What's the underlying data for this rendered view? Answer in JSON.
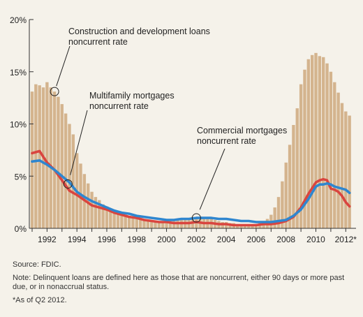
{
  "chart_data": {
    "type": "bar",
    "title": "",
    "xlabel": "",
    "ylabel": "",
    "ylim": [
      0,
      20
    ],
    "y_ticks": [
      "0%",
      "5%",
      "10%",
      "15%",
      "20%"
    ],
    "x_ticks": [
      "1992",
      "1994",
      "1996",
      "1998",
      "2000",
      "2002",
      "2004",
      "2006",
      "2008",
      "2010",
      "2012*"
    ],
    "x_range": [
      1991.0,
      2012.5
    ],
    "grid": false,
    "colors": {
      "bars": "#d4b48e",
      "multifamily": "#d9453f",
      "commercial": "#2f86cf"
    },
    "series": [
      {
        "name": "Construction and development loans noncurrent rate",
        "kind": "bar",
        "x": [
          1991.0,
          1991.25,
          1991.5,
          1991.75,
          1992.0,
          1992.25,
          1992.5,
          1992.75,
          1993.0,
          1993.25,
          1993.5,
          1993.75,
          1994.0,
          1994.25,
          1994.5,
          1994.75,
          1995.0,
          1995.25,
          1995.5,
          1995.75,
          1996.0,
          1996.25,
          1996.5,
          1996.75,
          1997.0,
          1997.25,
          1997.5,
          1997.75,
          1998.0,
          1998.25,
          1998.5,
          1998.75,
          1999.0,
          1999.25,
          1999.5,
          1999.75,
          2000.0,
          2000.25,
          2000.5,
          2000.75,
          2001.0,
          2001.25,
          2001.5,
          2001.75,
          2002.0,
          2002.25,
          2002.5,
          2002.75,
          2003.0,
          2003.25,
          2003.5,
          2003.75,
          2004.0,
          2004.25,
          2004.5,
          2004.75,
          2005.0,
          2005.25,
          2005.5,
          2005.75,
          2006.0,
          2006.25,
          2006.5,
          2006.75,
          2007.0,
          2007.25,
          2007.5,
          2007.75,
          2008.0,
          2008.25,
          2008.5,
          2008.75,
          2009.0,
          2009.25,
          2009.5,
          2009.75,
          2010.0,
          2010.25,
          2010.5,
          2010.75,
          2011.0,
          2011.25,
          2011.5,
          2011.75,
          2012.0,
          2012.25
        ],
        "values": [
          13.1,
          13.8,
          13.7,
          13.5,
          14.0,
          13.5,
          13.1,
          12.6,
          11.9,
          11.0,
          10.0,
          9.0,
          7.2,
          6.2,
          5.2,
          4.3,
          3.5,
          3.0,
          2.7,
          2.3,
          2.1,
          1.9,
          1.7,
          1.5,
          1.4,
          1.3,
          1.2,
          1.1,
          1.0,
          0.9,
          0.9,
          0.8,
          0.8,
          0.7,
          0.7,
          0.7,
          0.7,
          0.7,
          0.8,
          0.8,
          0.9,
          0.9,
          1.0,
          1.1,
          1.0,
          1.0,
          1.0,
          0.9,
          0.9,
          0.8,
          0.7,
          0.6,
          0.6,
          0.5,
          0.5,
          0.4,
          0.4,
          0.4,
          0.3,
          0.3,
          0.4,
          0.5,
          0.6,
          0.9,
          1.3,
          2.0,
          3.0,
          4.5,
          6.3,
          8.0,
          9.9,
          11.5,
          13.8,
          15.2,
          16.2,
          16.6,
          16.8,
          16.5,
          16.4,
          15.8,
          15.0,
          14.0,
          13.0,
          12.0,
          11.2,
          10.8
        ]
      },
      {
        "name": "Multifamily mortgages noncurrent rate",
        "kind": "line",
        "x": [
          1991.0,
          1991.5,
          1992.0,
          1992.5,
          1993.0,
          1993.5,
          1994.0,
          1994.5,
          1995.0,
          1995.5,
          1996.0,
          1996.5,
          1997.0,
          1997.5,
          1998.0,
          1998.5,
          1999.0,
          1999.5,
          2000.0,
          2000.5,
          2001.0,
          2001.5,
          2002.0,
          2002.5,
          2003.0,
          2003.5,
          2004.0,
          2004.5,
          2005.0,
          2005.5,
          2006.0,
          2006.5,
          2007.0,
          2007.5,
          2008.0,
          2008.5,
          2009.0,
          2009.5,
          2010.0,
          2010.25,
          2010.5,
          2010.75,
          2011.0,
          2011.25,
          2011.5,
          2011.75,
          2012.0,
          2012.25
        ],
        "values": [
          7.2,
          7.4,
          6.3,
          5.6,
          4.6,
          3.6,
          3.2,
          2.7,
          2.2,
          2.0,
          1.8,
          1.5,
          1.3,
          1.1,
          1.0,
          0.8,
          0.7,
          0.6,
          0.6,
          0.5,
          0.5,
          0.5,
          0.6,
          0.5,
          0.5,
          0.4,
          0.4,
          0.3,
          0.3,
          0.3,
          0.3,
          0.4,
          0.4,
          0.5,
          0.7,
          1.1,
          2.0,
          3.3,
          4.4,
          4.6,
          4.7,
          4.6,
          3.8,
          3.7,
          3.5,
          3.1,
          2.5,
          2.1
        ]
      },
      {
        "name": "Commercial mortgages noncurrent rate",
        "kind": "line",
        "x": [
          1991.0,
          1991.5,
          1992.0,
          1992.5,
          1993.0,
          1993.5,
          1994.0,
          1994.5,
          1995.0,
          1995.5,
          1996.0,
          1996.5,
          1997.0,
          1997.5,
          1998.0,
          1998.5,
          1999.0,
          1999.5,
          2000.0,
          2000.5,
          2001.0,
          2001.5,
          2002.0,
          2002.5,
          2003.0,
          2003.5,
          2004.0,
          2004.5,
          2005.0,
          2005.5,
          2006.0,
          2006.5,
          2007.0,
          2007.5,
          2008.0,
          2008.5,
          2009.0,
          2009.5,
          2010.0,
          2010.25,
          2010.5,
          2010.75,
          2011.0,
          2011.25,
          2011.5,
          2011.75,
          2012.0,
          2012.25
        ],
        "values": [
          6.4,
          6.5,
          6.1,
          5.6,
          5.0,
          4.4,
          3.5,
          3.0,
          2.6,
          2.3,
          2.0,
          1.7,
          1.5,
          1.4,
          1.2,
          1.1,
          1.0,
          0.9,
          0.8,
          0.8,
          0.9,
          0.9,
          1.0,
          1.0,
          1.0,
          0.9,
          0.9,
          0.8,
          0.7,
          0.7,
          0.6,
          0.6,
          0.6,
          0.7,
          0.8,
          1.2,
          1.8,
          2.8,
          4.0,
          4.2,
          4.2,
          4.3,
          4.2,
          4.0,
          3.9,
          3.8,
          3.7,
          3.4
        ]
      }
    ],
    "annotations": {
      "construction": [
        "Construction and development loans",
        "noncurrent rate"
      ],
      "multifamily": [
        "Multifamily mortgages",
        "noncurrent rate"
      ],
      "commercial": [
        "Commercial mortgages",
        "noncurrent rate"
      ]
    }
  },
  "notes": {
    "source": "Source: FDIC.",
    "note": "Note: Delinquent loans are defined here as those that are noncurrent, either 90 days or more past due, or in nonaccrual status.",
    "footnote": "*As of Q2 2012."
  }
}
